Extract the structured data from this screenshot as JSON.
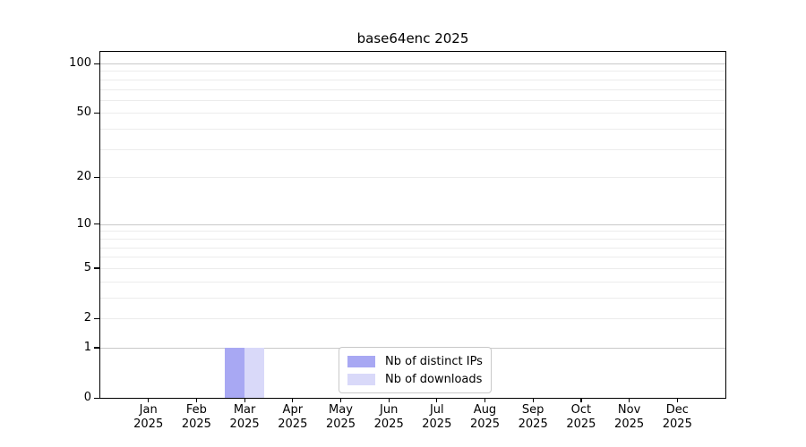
{
  "title": "base64enc 2025",
  "chart_data": {
    "type": "bar",
    "title": "base64enc 2025",
    "categories": [
      "Jan 2025",
      "Feb 2025",
      "Mar 2025",
      "Apr 2025",
      "May 2025",
      "Jun 2025",
      "Jul 2025",
      "Aug 2025",
      "Sep 2025",
      "Oct 2025",
      "Nov 2025",
      "Dec 2025"
    ],
    "series": [
      {
        "name": "Nb of distinct IPs",
        "color": "#a8a8f3",
        "values": [
          0,
          0,
          1,
          0,
          0,
          0,
          0,
          0,
          0,
          0,
          0,
          0
        ]
      },
      {
        "name": "Nb of downloads",
        "color": "#d9d9f9",
        "values": [
          0,
          0,
          1,
          0,
          0,
          0,
          0,
          0,
          0,
          0,
          0,
          0
        ]
      }
    ],
    "xlabel": "",
    "ylabel": "",
    "y_axis": {
      "scale": "log10(1+value)",
      "tick_values": [
        0,
        1,
        2,
        5,
        10,
        20,
        50,
        100
      ],
      "minor_gridline_values": [
        3,
        4,
        6,
        7,
        8,
        9,
        30,
        40,
        60,
        70,
        80,
        90
      ],
      "range": [
        0,
        118
      ]
    },
    "grid": "horizontal",
    "legend_position": "bottom-center"
  },
  "colors": {
    "bar_distinct_ips": "#a8a8f3",
    "bar_downloads": "#d9d9f9",
    "grid_major": "#c9c9c9",
    "grid_minor": "#ececec",
    "axis_frame": "#000000",
    "legend_border": "#c9c9c9",
    "background": "#ffffff",
    "text": "#000000"
  }
}
